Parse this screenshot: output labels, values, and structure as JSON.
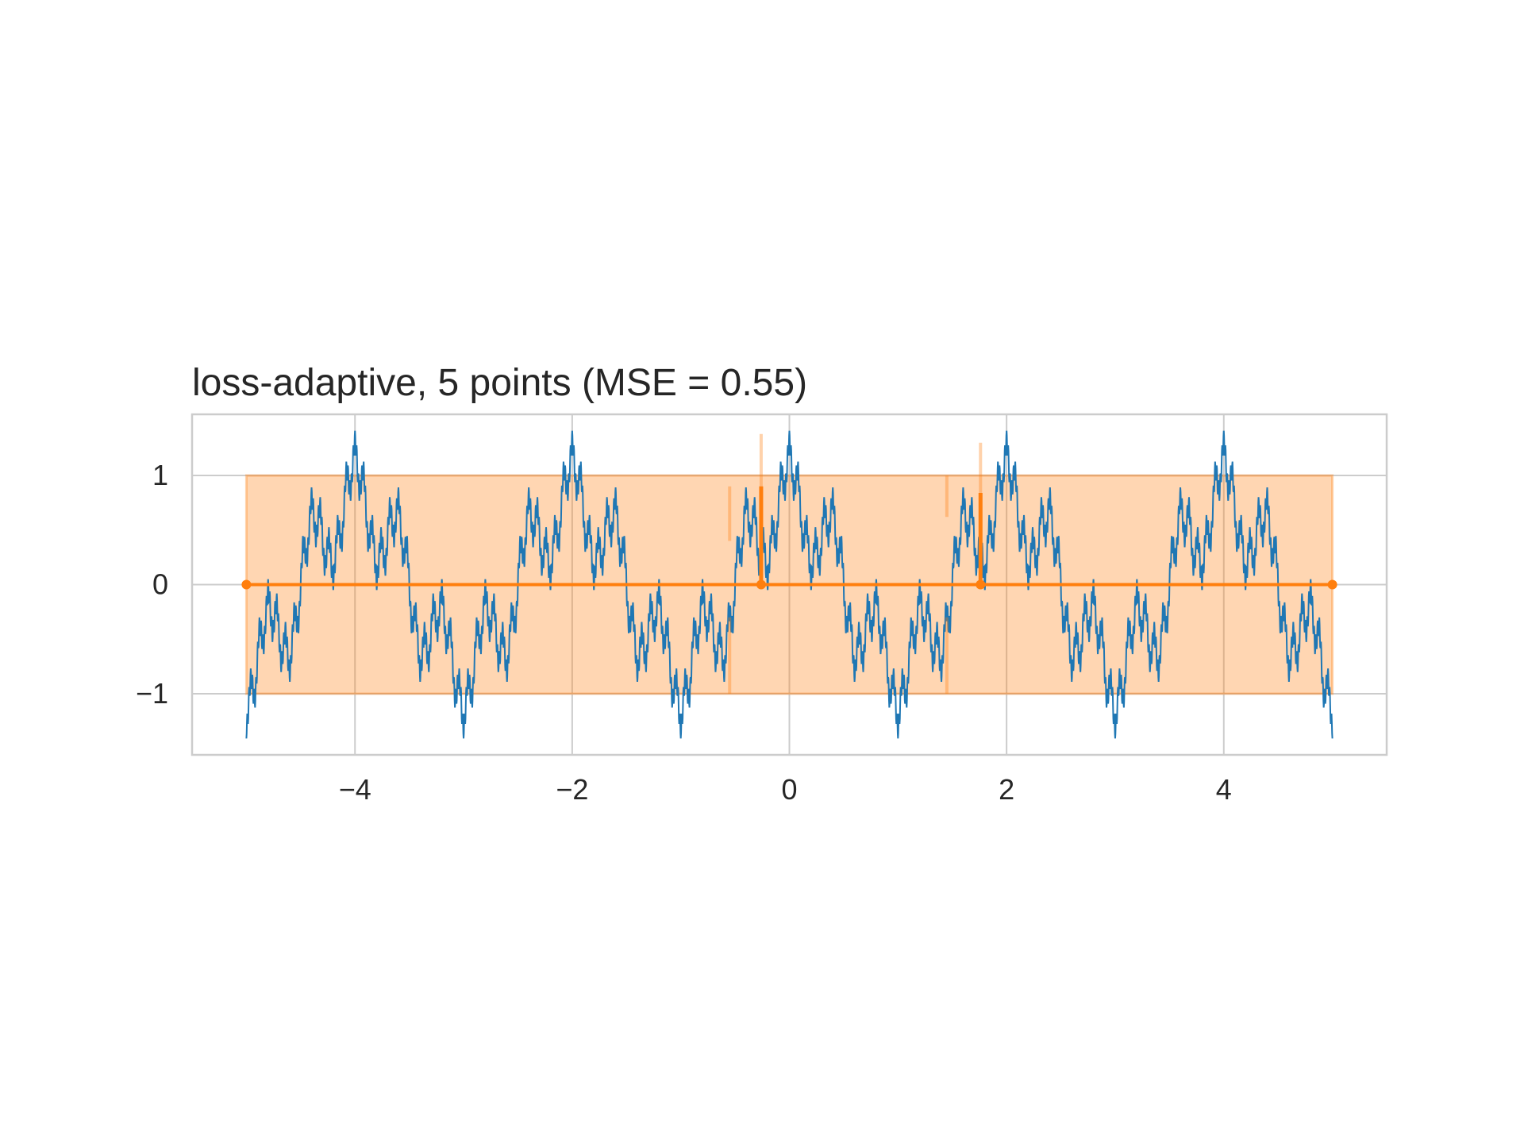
{
  "chart_data": {
    "type": "line",
    "title": "loss-adaptive, 5 points (MSE = 0.55)",
    "xlabel": "",
    "ylabel": "",
    "xlim": [
      -5.5,
      5.5
    ],
    "ylim": [
      -1.56,
      1.56
    ],
    "xticks": [
      -4,
      -2,
      0,
      2,
      4
    ],
    "xtick_labels": [
      "−4",
      "−2",
      "0",
      "2",
      "4"
    ],
    "yticks": [
      -1,
      0,
      1
    ],
    "ytick_labels": [
      "−1",
      "0",
      "1"
    ],
    "grid": true,
    "legend": "none",
    "series": [
      {
        "role": "true-function",
        "color": "#1f77b4",
        "domain": [
          -5,
          5
        ],
        "description_free_sample": {
          "x": [
            -5,
            -4,
            -3,
            -2,
            -1,
            0,
            1,
            2,
            3,
            4,
            5
          ],
          "y": [
            -1.41,
            1.41,
            -1.41,
            1.41,
            -1.41,
            1.41,
            -1.41,
            1.41,
            -1.41,
            1.41,
            -1.41
          ]
        }
      },
      {
        "role": "model-mean",
        "color": "#ff7f0e",
        "x": [
          -5,
          -0.26,
          1.76,
          5
        ],
        "y": [
          0,
          0,
          0,
          0
        ],
        "spikes": [
          {
            "x": -0.26,
            "y": 0.9
          },
          {
            "x": 1.76,
            "y": 0.84
          }
        ],
        "points": [
          {
            "x": -5,
            "y": 0
          },
          {
            "x": -0.26,
            "y": 0
          },
          {
            "x": 1.76,
            "y": 0
          },
          {
            "x": 5,
            "y": 0
          }
        ]
      }
    ],
    "band": {
      "color": "#ff7f0e",
      "x": [
        -5,
        5
      ],
      "lower": -1,
      "upper": 1
    }
  }
}
